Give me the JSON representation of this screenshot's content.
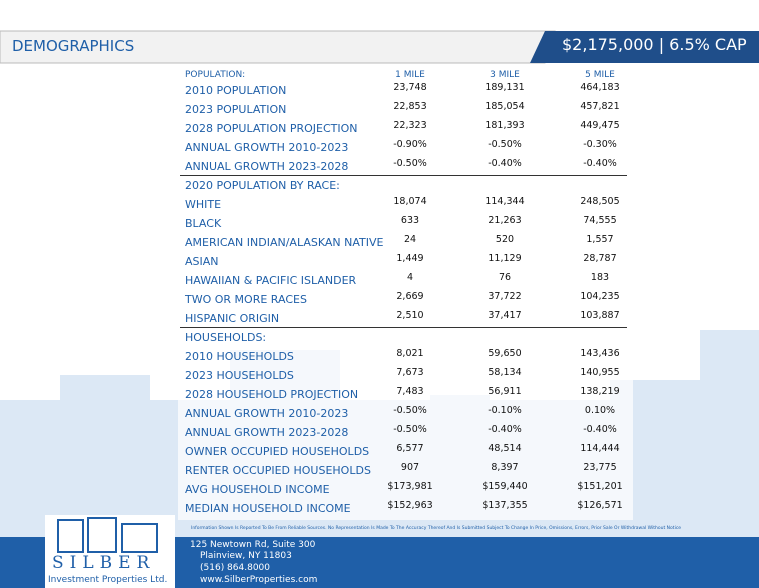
{
  "header": {
    "title": "DEMOGRAPHICS",
    "price": "$2,175,000 | 6.5% CAP"
  },
  "table": {
    "columns": [
      "POPULATION:",
      "1 MILE",
      "3 MILE",
      "5 MILE"
    ],
    "sections": [
      {
        "rows": [
          [
            "2010 POPULATION",
            "23,748",
            "189,131",
            "464,183"
          ],
          [
            "2023 POPULATION",
            "22,853",
            "185,054",
            "457,821"
          ],
          [
            "2028 POPULATION PROJECTION",
            "22,323",
            "181,393",
            "449,475"
          ],
          [
            "ANNUAL GROWTH 2010-2023",
            "-0.90%",
            "-0.50%",
            "-0.30%"
          ],
          [
            "ANNUAL GROWTH 2023-2028",
            "-0.50%",
            "-0.40%",
            "-0.40%"
          ]
        ]
      },
      {
        "heading": "2020 POPULATION BY RACE:",
        "rows": [
          [
            "WHITE",
            "18,074",
            "114,344",
            "248,505"
          ],
          [
            "BLACK",
            "633",
            "21,263",
            "74,555"
          ],
          [
            "AMERICAN INDIAN/ALASKAN NATIVE",
            "24",
            "520",
            "1,557"
          ],
          [
            "ASIAN",
            "1,449",
            "11,129",
            "28,787"
          ],
          [
            "HAWAIIAN & PACIFIC ISLANDER",
            "4",
            "76",
            "183"
          ],
          [
            "TWO OR MORE RACES",
            "2,669",
            "37,722",
            "104,235"
          ],
          [
            "HISPANIC ORIGIN",
            "2,510",
            "37,417",
            "103,887"
          ]
        ]
      },
      {
        "heading": "HOUSEHOLDS:",
        "rows": [
          [
            "2010 HOUSEHOLDS",
            "8,021",
            "59,650",
            "143,436"
          ],
          [
            "2023 HOUSEHOLDS",
            "7,673",
            "58,134",
            "140,955"
          ],
          [
            "2028 HOUSEHOLD PROJECTION",
            "7,483",
            "56,911",
            "138,219"
          ],
          [
            "ANNUAL GROWTH 2010-2023",
            "-0.50%",
            "-0.10%",
            "0.10%"
          ],
          [
            "ANNUAL GROWTH 2023-2028",
            "-0.50%",
            "-0.40%",
            "-0.40%"
          ],
          [
            "OWNER OCCUPIED HOUSEHOLDS",
            "6,577",
            "48,514",
            "114,444"
          ],
          [
            "RENTER OCCUPIED HOUSEHOLDS",
            "907",
            "8,397",
            "23,775"
          ],
          [
            "AVG HOUSEHOLD INCOME",
            "$173,981",
            "$159,440",
            "$151,201"
          ],
          [
            "MEDIAN HOUSEHOLD INCOME",
            "$152,963",
            "$137,355",
            "$126,571"
          ]
        ]
      }
    ]
  },
  "footer": {
    "disclaimer": "Information Shown Is Reported To Be From Reliable Sources. No Representation Is Made To The Accuracy Thereof And Is Submitted Subject To Change In Price, Omissions, Errors, Prior Sale Or Withdrawal Without Notice",
    "address_line1": "125 Newtown Rd, Suite 300",
    "address_line2": "Plainview, NY 11803",
    "phone": "(516) 864.8000",
    "website": "www.SilberProperties.com",
    "logo_name": "SILBER",
    "logo_tagline": "Investment Properties Ltd."
  }
}
